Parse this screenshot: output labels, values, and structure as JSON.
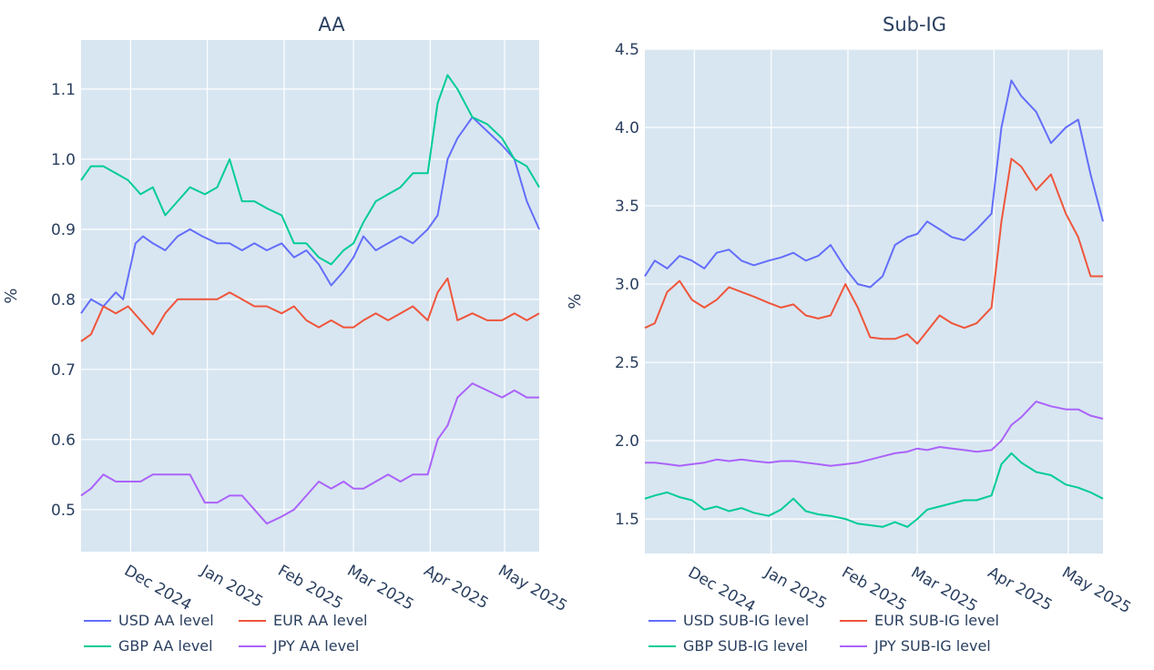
{
  "chart_data": [
    {
      "type": "line",
      "title": "AA",
      "ylabel": "%",
      "xlabel": "",
      "ylim": [
        0.44,
        1.17
      ],
      "xlim": [
        "2024-11-11",
        "2025-05-15"
      ],
      "x_ticks": [
        {
          "date": "2024-12-01",
          "label": "Dec 2024"
        },
        {
          "date": "2025-01-01",
          "label": "Jan 2025"
        },
        {
          "date": "2025-02-01",
          "label": "Feb 2025"
        },
        {
          "date": "2025-03-01",
          "label": "Mar 2025"
        },
        {
          "date": "2025-04-01",
          "label": "Apr 2025"
        },
        {
          "date": "2025-05-01",
          "label": "May 2025"
        }
      ],
      "y_ticks": [
        0.5,
        0.6,
        0.7,
        0.8,
        0.9,
        1.0,
        1.1
      ],
      "y_tick_labels": [
        "0.5",
        "0.6",
        "0.7",
        "0.8",
        "0.9",
        "1.0",
        "1.1"
      ],
      "grid": true,
      "legend_position": "bottom",
      "series": [
        {
          "name": "USD AA level",
          "color": "#636efa",
          "x": [
            "2024-11-11",
            "2024-11-15",
            "2024-11-20",
            "2024-11-25",
            "2024-11-28",
            "2024-12-03",
            "2024-12-06",
            "2024-12-10",
            "2024-12-15",
            "2024-12-20",
            "2024-12-25",
            "2024-12-30",
            "2025-01-05",
            "2025-01-10",
            "2025-01-15",
            "2025-01-20",
            "2025-01-25",
            "2025-01-31",
            "2025-02-05",
            "2025-02-10",
            "2025-02-15",
            "2025-02-20",
            "2025-02-25",
            "2025-03-01",
            "2025-03-05",
            "2025-03-10",
            "2025-03-15",
            "2025-03-20",
            "2025-03-25",
            "2025-03-31",
            "2025-04-04",
            "2025-04-08",
            "2025-04-12",
            "2025-04-18",
            "2025-04-24",
            "2025-04-30",
            "2025-05-05",
            "2025-05-10",
            "2025-05-15"
          ],
          "y": [
            0.78,
            0.8,
            0.79,
            0.81,
            0.8,
            0.88,
            0.89,
            0.88,
            0.87,
            0.89,
            0.9,
            0.89,
            0.88,
            0.88,
            0.87,
            0.88,
            0.87,
            0.88,
            0.86,
            0.87,
            0.85,
            0.82,
            0.84,
            0.86,
            0.89,
            0.87,
            0.88,
            0.89,
            0.88,
            0.9,
            0.92,
            1.0,
            1.03,
            1.06,
            1.04,
            1.02,
            1.0,
            0.94,
            0.9
          ]
        },
        {
          "name": "EUR AA level",
          "color": "#ef553b",
          "x": [
            "2024-11-11",
            "2024-11-15",
            "2024-11-20",
            "2024-11-25",
            "2024-11-30",
            "2024-12-05",
            "2024-12-10",
            "2024-12-15",
            "2024-12-20",
            "2024-12-25",
            "2024-12-31",
            "2025-01-05",
            "2025-01-10",
            "2025-01-15",
            "2025-01-20",
            "2025-01-25",
            "2025-01-31",
            "2025-02-05",
            "2025-02-10",
            "2025-02-15",
            "2025-02-20",
            "2025-02-25",
            "2025-03-01",
            "2025-03-05",
            "2025-03-10",
            "2025-03-15",
            "2025-03-20",
            "2025-03-25",
            "2025-03-31",
            "2025-04-04",
            "2025-04-08",
            "2025-04-12",
            "2025-04-18",
            "2025-04-24",
            "2025-04-30",
            "2025-05-05",
            "2025-05-10",
            "2025-05-15"
          ],
          "y": [
            0.74,
            0.75,
            0.79,
            0.78,
            0.79,
            0.77,
            0.75,
            0.78,
            0.8,
            0.8,
            0.8,
            0.8,
            0.81,
            0.8,
            0.79,
            0.79,
            0.78,
            0.79,
            0.77,
            0.76,
            0.77,
            0.76,
            0.76,
            0.77,
            0.78,
            0.77,
            0.78,
            0.79,
            0.77,
            0.81,
            0.83,
            0.77,
            0.78,
            0.77,
            0.77,
            0.78,
            0.77,
            0.78
          ]
        },
        {
          "name": "GBP AA level",
          "color": "#00cc96",
          "x": [
            "2024-11-11",
            "2024-11-15",
            "2024-11-20",
            "2024-11-25",
            "2024-11-30",
            "2024-12-05",
            "2024-12-10",
            "2024-12-15",
            "2024-12-20",
            "2024-12-25",
            "2024-12-31",
            "2025-01-05",
            "2025-01-10",
            "2025-01-15",
            "2025-01-20",
            "2025-01-25",
            "2025-01-31",
            "2025-02-05",
            "2025-02-10",
            "2025-02-15",
            "2025-02-20",
            "2025-02-25",
            "2025-03-01",
            "2025-03-05",
            "2025-03-10",
            "2025-03-15",
            "2025-03-20",
            "2025-03-25",
            "2025-03-31",
            "2025-04-04",
            "2025-04-08",
            "2025-04-12",
            "2025-04-18",
            "2025-04-24",
            "2025-04-30",
            "2025-05-05",
            "2025-05-10",
            "2025-05-15"
          ],
          "y": [
            0.97,
            0.99,
            0.99,
            0.98,
            0.97,
            0.95,
            0.96,
            0.92,
            0.94,
            0.96,
            0.95,
            0.96,
            1.0,
            0.94,
            0.94,
            0.93,
            0.92,
            0.88,
            0.88,
            0.86,
            0.85,
            0.87,
            0.88,
            0.91,
            0.94,
            0.95,
            0.96,
            0.98,
            0.98,
            1.08,
            1.12,
            1.1,
            1.06,
            1.05,
            1.03,
            1.0,
            0.99,
            0.96
          ]
        },
        {
          "name": "JPY AA level",
          "color": "#ab63fa",
          "x": [
            "2024-11-11",
            "2024-11-15",
            "2024-11-20",
            "2024-11-25",
            "2024-11-30",
            "2024-12-05",
            "2024-12-10",
            "2024-12-15",
            "2024-12-20",
            "2024-12-25",
            "2024-12-31",
            "2025-01-05",
            "2025-01-10",
            "2025-01-15",
            "2025-01-20",
            "2025-01-25",
            "2025-01-31",
            "2025-02-05",
            "2025-02-10",
            "2025-02-15",
            "2025-02-20",
            "2025-02-25",
            "2025-03-01",
            "2025-03-05",
            "2025-03-10",
            "2025-03-15",
            "2025-03-20",
            "2025-03-25",
            "2025-03-31",
            "2025-04-04",
            "2025-04-08",
            "2025-04-12",
            "2025-04-18",
            "2025-04-24",
            "2025-04-30",
            "2025-05-05",
            "2025-05-10",
            "2025-05-15"
          ],
          "y": [
            0.52,
            0.53,
            0.55,
            0.54,
            0.54,
            0.54,
            0.55,
            0.55,
            0.55,
            0.55,
            0.51,
            0.51,
            0.52,
            0.52,
            0.5,
            0.48,
            0.49,
            0.5,
            0.52,
            0.54,
            0.53,
            0.54,
            0.53,
            0.53,
            0.54,
            0.55,
            0.54,
            0.55,
            0.55,
            0.6,
            0.62,
            0.66,
            0.68,
            0.67,
            0.66,
            0.67,
            0.66,
            0.66
          ]
        }
      ]
    },
    {
      "type": "line",
      "title": "Sub-IG",
      "ylabel": "%",
      "xlabel": "",
      "ylim": [
        1.28,
        4.5
      ],
      "xlim": [
        "2024-11-11",
        "2025-05-15"
      ],
      "x_ticks": [
        {
          "date": "2024-12-01",
          "label": "Dec 2024"
        },
        {
          "date": "2025-01-01",
          "label": "Jan 2025"
        },
        {
          "date": "2025-02-01",
          "label": "Feb 2025"
        },
        {
          "date": "2025-03-01",
          "label": "Mar 2025"
        },
        {
          "date": "2025-04-01",
          "label": "Apr 2025"
        },
        {
          "date": "2025-05-01",
          "label": "May 2025"
        }
      ],
      "y_ticks": [
        1.5,
        2.0,
        2.5,
        3.0,
        3.5,
        4.0,
        4.5
      ],
      "y_tick_labels": [
        "1.5",
        "2.0",
        "2.5",
        "3.0",
        "3.5",
        "4.0",
        "4.5"
      ],
      "grid": true,
      "legend_position": "bottom",
      "series": [
        {
          "name": "USD SUB-IG level",
          "color": "#636efa",
          "x": [
            "2024-11-11",
            "2024-11-15",
            "2024-11-20",
            "2024-11-25",
            "2024-11-30",
            "2024-12-05",
            "2024-12-10",
            "2024-12-15",
            "2024-12-20",
            "2024-12-25",
            "2024-12-31",
            "2025-01-05",
            "2025-01-10",
            "2025-01-15",
            "2025-01-20",
            "2025-01-25",
            "2025-01-31",
            "2025-02-05",
            "2025-02-10",
            "2025-02-15",
            "2025-02-20",
            "2025-02-25",
            "2025-03-01",
            "2025-03-05",
            "2025-03-10",
            "2025-03-15",
            "2025-03-20",
            "2025-03-25",
            "2025-03-31",
            "2025-04-04",
            "2025-04-08",
            "2025-04-12",
            "2025-04-18",
            "2025-04-24",
            "2025-04-30",
            "2025-05-05",
            "2025-05-10",
            "2025-05-15"
          ],
          "y": [
            3.05,
            3.15,
            3.1,
            3.18,
            3.15,
            3.1,
            3.2,
            3.22,
            3.15,
            3.12,
            3.15,
            3.17,
            3.2,
            3.15,
            3.18,
            3.25,
            3.1,
            3.0,
            2.98,
            3.05,
            3.25,
            3.3,
            3.32,
            3.4,
            3.35,
            3.3,
            3.28,
            3.35,
            3.45,
            4.0,
            4.3,
            4.2,
            4.1,
            3.9,
            4.0,
            4.05,
            3.7,
            3.4
          ]
        },
        {
          "name": "EUR SUB-IG level",
          "color": "#ef553b",
          "x": [
            "2024-11-11",
            "2024-11-15",
            "2024-11-20",
            "2024-11-25",
            "2024-11-30",
            "2024-12-05",
            "2024-12-10",
            "2024-12-15",
            "2024-12-20",
            "2024-12-25",
            "2024-12-31",
            "2025-01-05",
            "2025-01-10",
            "2025-01-15",
            "2025-01-20",
            "2025-01-25",
            "2025-01-31",
            "2025-02-05",
            "2025-02-10",
            "2025-02-15",
            "2025-02-20",
            "2025-02-25",
            "2025-03-01",
            "2025-03-05",
            "2025-03-10",
            "2025-03-15",
            "2025-03-20",
            "2025-03-25",
            "2025-03-31",
            "2025-04-04",
            "2025-04-08",
            "2025-04-12",
            "2025-04-18",
            "2025-04-24",
            "2025-04-30",
            "2025-05-05",
            "2025-05-10",
            "2025-05-15"
          ],
          "y": [
            2.72,
            2.75,
            2.95,
            3.02,
            2.9,
            2.85,
            2.9,
            2.98,
            2.95,
            2.92,
            2.88,
            2.85,
            2.87,
            2.8,
            2.78,
            2.8,
            3.0,
            2.85,
            2.66,
            2.65,
            2.65,
            2.68,
            2.62,
            2.7,
            2.8,
            2.75,
            2.72,
            2.75,
            2.85,
            3.4,
            3.8,
            3.75,
            3.6,
            3.7,
            3.45,
            3.3,
            3.05,
            3.05
          ]
        },
        {
          "name": "GBP SUB-IG level",
          "color": "#00cc96",
          "x": [
            "2024-11-11",
            "2024-11-15",
            "2024-11-20",
            "2024-11-25",
            "2024-11-30",
            "2024-12-05",
            "2024-12-10",
            "2024-12-15",
            "2024-12-20",
            "2024-12-25",
            "2024-12-31",
            "2025-01-05",
            "2025-01-10",
            "2025-01-15",
            "2025-01-20",
            "2025-01-25",
            "2025-01-31",
            "2025-02-05",
            "2025-02-10",
            "2025-02-15",
            "2025-02-20",
            "2025-02-25",
            "2025-03-01",
            "2025-03-05",
            "2025-03-10",
            "2025-03-15",
            "2025-03-20",
            "2025-03-25",
            "2025-03-31",
            "2025-04-04",
            "2025-04-08",
            "2025-04-12",
            "2025-04-18",
            "2025-04-24",
            "2025-04-30",
            "2025-05-05",
            "2025-05-10",
            "2025-05-15"
          ],
          "y": [
            1.63,
            1.65,
            1.67,
            1.64,
            1.62,
            1.56,
            1.58,
            1.55,
            1.57,
            1.54,
            1.52,
            1.56,
            1.63,
            1.55,
            1.53,
            1.52,
            1.5,
            1.47,
            1.46,
            1.45,
            1.48,
            1.45,
            1.5,
            1.56,
            1.58,
            1.6,
            1.62,
            1.62,
            1.65,
            1.85,
            1.92,
            1.86,
            1.8,
            1.78,
            1.72,
            1.7,
            1.67,
            1.63
          ]
        },
        {
          "name": "JPY SUB-IG level",
          "color": "#ab63fa",
          "x": [
            "2024-11-11",
            "2024-11-15",
            "2024-11-20",
            "2024-11-25",
            "2024-11-30",
            "2024-12-05",
            "2024-12-10",
            "2024-12-15",
            "2024-12-20",
            "2024-12-25",
            "2024-12-31",
            "2025-01-05",
            "2025-01-10",
            "2025-01-15",
            "2025-01-20",
            "2025-01-25",
            "2025-01-31",
            "2025-02-05",
            "2025-02-10",
            "2025-02-15",
            "2025-02-20",
            "2025-02-25",
            "2025-03-01",
            "2025-03-05",
            "2025-03-10",
            "2025-03-15",
            "2025-03-20",
            "2025-03-25",
            "2025-03-31",
            "2025-04-04",
            "2025-04-08",
            "2025-04-12",
            "2025-04-18",
            "2025-04-24",
            "2025-04-30",
            "2025-05-05",
            "2025-05-10",
            "2025-05-15"
          ],
          "y": [
            1.86,
            1.86,
            1.85,
            1.84,
            1.85,
            1.86,
            1.88,
            1.87,
            1.88,
            1.87,
            1.86,
            1.87,
            1.87,
            1.86,
            1.85,
            1.84,
            1.85,
            1.86,
            1.88,
            1.9,
            1.92,
            1.93,
            1.95,
            1.94,
            1.96,
            1.95,
            1.94,
            1.93,
            1.94,
            2.0,
            2.1,
            2.15,
            2.25,
            2.22,
            2.2,
            2.2,
            2.16,
            2.14
          ]
        }
      ]
    }
  ]
}
